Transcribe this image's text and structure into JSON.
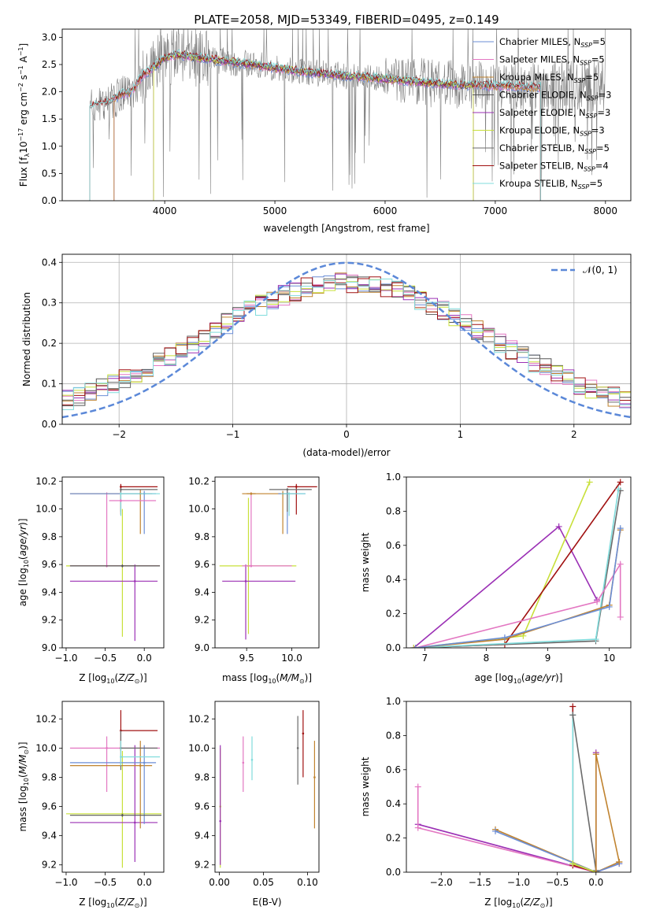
{
  "title": "PLATE=2058, MJD=53349, FIBERID=0495, z=0.149",
  "colors": {
    "Chabrier MILES": "#6b8ed6",
    "Salpeter MILES": "#e377c2",
    "Kroupa MILES": "#c0832f",
    "Chabrier ELODIE": "#555555",
    "Salpeter ELODIE": "#9b30b5",
    "Kroupa ELODIE": "#c8e03a",
    "Chabrier STELIB": "#6a6a6a",
    "Salpeter STELIB": "#a01010",
    "Kroupa STELIB": "#80dcdc",
    "gaussian": "#5b88d8",
    "data": "#808080"
  },
  "legend_spectrum": [
    {
      "pre": "Chabrier MILES, N",
      "sub": "SSP",
      "post": "=5",
      "key": "Chabrier MILES"
    },
    {
      "pre": "Salpeter MILES, N",
      "sub": "SSP",
      "post": "=5",
      "key": "Salpeter MILES"
    },
    {
      "pre": "Kroupa MILES, N",
      "sub": "SSP",
      "post": "=5",
      "key": "Kroupa MILES"
    },
    {
      "pre": "Chabrier ELODIE, N",
      "sub": "SSP",
      "post": "=3",
      "key": "Chabrier ELODIE"
    },
    {
      "pre": "Salpeter ELODIE, N",
      "sub": "SSP",
      "post": "=3",
      "key": "Salpeter ELODIE"
    },
    {
      "pre": "Kroupa ELODIE, N",
      "sub": "SSP",
      "post": "=3",
      "key": "Kroupa ELODIE"
    },
    {
      "pre": "Chabrier STELIB, N",
      "sub": "SSP",
      "post": "=5",
      "key": "Chabrier STELIB"
    },
    {
      "pre": "Salpeter STELIB, N",
      "sub": "SSP",
      "post": "=4",
      "key": "Salpeter STELIB"
    },
    {
      "pre": "Kroupa STELIB, N",
      "sub": "SSP",
      "post": "=5",
      "key": "Kroupa STELIB"
    }
  ],
  "chart_data": [
    {
      "panel": "spectrum",
      "type": "line",
      "xlabel": "wavelength [Angstrom, rest frame]",
      "ylabel": "Flux [f_λ 10^-17 erg cm^-2 s^-1 A^-1]",
      "xlim": [
        3070,
        8230
      ],
      "ylim": [
        0,
        3.15
      ],
      "xticks": [
        4000,
        5000,
        6000,
        7000,
        8000
      ],
      "yticks": [
        0.0,
        0.5,
        1.0,
        1.5,
        2.0,
        2.5,
        3.0
      ],
      "continuum": [
        [
          3320,
          1.7
        ],
        [
          3400,
          1.78
        ],
        [
          3500,
          1.8
        ],
        [
          3600,
          1.95
        ],
        [
          3700,
          2.0
        ],
        [
          3800,
          2.3
        ],
        [
          3900,
          2.45
        ],
        [
          4000,
          2.62
        ],
        [
          4100,
          2.68
        ],
        [
          4200,
          2.66
        ],
        [
          4400,
          2.6
        ],
        [
          4600,
          2.55
        ],
        [
          4800,
          2.5
        ],
        [
          5000,
          2.44
        ],
        [
          5200,
          2.38
        ],
        [
          5400,
          2.34
        ],
        [
          5600,
          2.3
        ],
        [
          5800,
          2.27
        ],
        [
          6000,
          2.24
        ],
        [
          6200,
          2.2
        ],
        [
          6400,
          2.16
        ],
        [
          6600,
          2.13
        ],
        [
          6800,
          2.12
        ],
        [
          7000,
          2.11
        ],
        [
          7200,
          2.1
        ],
        [
          7400,
          2.08
        ]
      ],
      "grid": false,
      "legend": "upper right"
    },
    {
      "panel": "residual-histogram",
      "type": "line",
      "xlabel": "(data-model)/error",
      "ylabel": "Normed distribution",
      "xlim": [
        -2.5,
        2.5
      ],
      "ylim": [
        0,
        0.42
      ],
      "xticks": [
        -2,
        -1,
        0,
        1,
        2
      ],
      "yticks": [
        0.0,
        0.1,
        0.2,
        0.3,
        0.4
      ],
      "gaussian_label": "N(0,1)",
      "grid": true,
      "legend": "upper right"
    },
    {
      "panel": "Z-age",
      "type": "scatter",
      "xlabel": "Z [log10(Z/Z_sun)]",
      "ylabel": "age [log10(age/yr)]",
      "xlim": [
        -1.05,
        0.25
      ],
      "ylim": [
        9.0,
        10.23
      ],
      "xticks": [
        -1.0,
        -0.5,
        0.0
      ],
      "yticks": [
        9.0,
        9.2,
        9.4,
        9.6,
        9.8,
        10.0,
        10.2
      ],
      "points": [
        {
          "s": "Kroupa ELODIE",
          "x": -0.28,
          "y": 9.59,
          "xe": [
            -1.0,
            0.2
          ],
          "ye": [
            9.08,
            10.0
          ]
        },
        {
          "s": "Salpeter ELODIE",
          "x": -0.12,
          "y": 9.48,
          "xe": [
            -0.95,
            0.17
          ],
          "ye": [
            9.05,
            9.6
          ]
        },
        {
          "s": "Salpeter MILES",
          "x": -0.48,
          "y": 9.59,
          "xe": [
            -0.95,
            0.2
          ],
          "ye": [
            9.58,
            10.12
          ]
        },
        {
          "s": "Kroupa MILES",
          "x": -0.05,
          "y": 10.11,
          "xe": [
            -0.95,
            0.1
          ],
          "ye": [
            9.82,
            10.14
          ]
        },
        {
          "s": "Chabrier MILES",
          "x": 0.0,
          "y": 10.11,
          "xe": [
            -0.95,
            0.15
          ],
          "ye": [
            9.82,
            10.13
          ]
        },
        {
          "s": "Salpeter STELIB",
          "x": -0.3,
          "y": 10.16,
          "xe": [
            -0.3,
            0.17
          ],
          "ye": [
            9.96,
            10.18
          ]
        },
        {
          "s": "Chabrier STELIB",
          "x": -0.3,
          "y": 10.14,
          "xe": [
            -0.3,
            0.17
          ],
          "ye": [
            9.98,
            10.15
          ]
        },
        {
          "s": "Kroupa STELIB",
          "x": -0.3,
          "y": 10.11,
          "xe": [
            -0.3,
            0.2
          ],
          "ye": [
            9.95,
            10.12
          ]
        },
        {
          "s": "Salpeter MILES",
          "x": -0.3,
          "y": 10.06,
          "xe": [
            -0.45,
            0.15
          ],
          "ye": [
            10.05,
            10.07
          ]
        },
        {
          "s": "Chabrier ELODIE",
          "x": -0.28,
          "y": 9.59,
          "xe": [
            -0.95,
            0.2
          ],
          "ye": [
            9.58,
            9.6
          ]
        }
      ]
    },
    {
      "panel": "mass-age",
      "type": "scatter",
      "xlabel": "mass [log10(M/M_sun)]",
      "ylabel": "",
      "xlim": [
        9.15,
        10.3
      ],
      "ylim": [
        9.0,
        10.23
      ],
      "xticks": [
        9.5,
        10.0
      ],
      "yticks": [
        9.0,
        9.2,
        9.4,
        9.6,
        9.8,
        10.0,
        10.2
      ],
      "points": [
        {
          "s": "Kroupa ELODIE",
          "x": 9.52,
          "y": 9.59,
          "xe": [
            9.2,
            10.05
          ],
          "ye": [
            9.1,
            10.08
          ]
        },
        {
          "s": "Salpeter ELODIE",
          "x": 9.49,
          "y": 9.48,
          "xe": [
            9.23,
            10.04
          ],
          "ye": [
            9.06,
            9.6
          ]
        },
        {
          "s": "Salpeter MILES",
          "x": 9.55,
          "y": 9.59,
          "xe": [
            9.45,
            10.0
          ],
          "ye": [
            9.58,
            10.12
          ]
        },
        {
          "s": "Kroupa MILES",
          "x": 9.9,
          "y": 10.11,
          "xe": [
            9.45,
            10.06
          ],
          "ye": [
            9.82,
            10.13
          ]
        },
        {
          "s": "Chabrier MILES",
          "x": 9.95,
          "y": 10.11,
          "xe": [
            9.85,
            10.15
          ],
          "ye": [
            9.82,
            10.13
          ]
        },
        {
          "s": "Salpeter STELIB",
          "x": 10.05,
          "y": 10.16,
          "xe": [
            9.95,
            10.28
          ],
          "ye": [
            9.96,
            10.18
          ]
        },
        {
          "s": "Chabrier STELIB",
          "x": 9.95,
          "y": 10.14,
          "xe": [
            9.75,
            10.22
          ],
          "ye": [
            9.98,
            10.15
          ]
        },
        {
          "s": "Kroupa STELIB",
          "x": 9.97,
          "y": 10.11,
          "xe": [
            9.88,
            10.15
          ],
          "ye": [
            9.95,
            10.12
          ]
        },
        {
          "s": "Kroupa MILES",
          "x": 9.55,
          "y": 10.11,
          "xe": [
            9.5,
            9.6
          ],
          "ye": [
            10.1,
            10.12
          ]
        }
      ]
    },
    {
      "panel": "age-massweight",
      "type": "line",
      "xlabel": "age [log10(age/yr)]",
      "ylabel": "mass weight",
      "xlim": [
        6.7,
        10.35
      ],
      "ylim": [
        0,
        1.0
      ],
      "xticks": [
        7,
        8,
        9,
        10
      ],
      "yticks": [
        0.0,
        0.2,
        0.4,
        0.6,
        0.8,
        1.0
      ],
      "series": [
        {
          "s": "Salpeter ELODIE",
          "x": [
            6.82,
            9.18,
            9.8
          ],
          "y": [
            0.0,
            0.71,
            0.28
          ]
        },
        {
          "s": "Kroupa ELODIE",
          "x": [
            6.82,
            8.6,
            9.68
          ],
          "y": [
            0.0,
            0.07,
            0.97
          ]
        },
        {
          "s": "Salpeter STELIB",
          "x": [
            6.85,
            8.3,
            10.18
          ],
          "y": [
            0.0,
            0.02,
            0.97
          ]
        },
        {
          "s": "Chabrier STELIB",
          "x": [
            6.85,
            9.78,
            10.18
          ],
          "y": [
            0.0,
            0.04,
            0.92
          ]
        },
        {
          "s": "Kroupa STELIB",
          "x": [
            6.85,
            9.78,
            10.15
          ],
          "y": [
            0.0,
            0.05,
            0.93
          ]
        },
        {
          "s": "Salpeter MILES",
          "x": [
            6.85,
            9.8,
            10.18,
            10.18
          ],
          "y": [
            0.0,
            0.27,
            0.49,
            0.18
          ]
        },
        {
          "s": "Kroupa MILES",
          "x": [
            6.85,
            8.3,
            10.0,
            10.18
          ],
          "y": [
            0.0,
            0.05,
            0.25,
            0.69
          ]
        },
        {
          "s": "Chabrier MILES",
          "x": [
            6.85,
            8.3,
            10.0,
            10.18
          ],
          "y": [
            0.0,
            0.06,
            0.24,
            0.7
          ]
        }
      ]
    },
    {
      "panel": "Z-mass",
      "type": "scatter",
      "xlabel": "Z [log10(Z/Z_sun)]",
      "ylabel": "mass [log10(M/M_sun)]",
      "xlim": [
        -1.05,
        0.25
      ],
      "ylim": [
        9.15,
        10.32
      ],
      "xticks": [
        -1.0,
        -0.5,
        0.0
      ],
      "yticks": [
        9.2,
        9.4,
        9.6,
        9.8,
        10.0,
        10.2
      ],
      "points": [
        {
          "s": "Kroupa ELODIE",
          "x": -0.28,
          "y": 9.55,
          "xe": [
            -1.0,
            0.22
          ],
          "ye": [
            9.18,
            9.98
          ]
        },
        {
          "s": "Salpeter ELODIE",
          "x": -0.12,
          "y": 9.49,
          "xe": [
            -0.95,
            0.17
          ],
          "ye": [
            9.22,
            10.02
          ]
        },
        {
          "s": "Salpeter MILES",
          "x": -0.48,
          "y": 10.0,
          "xe": [
            -0.95,
            0.2
          ],
          "ye": [
            9.7,
            10.08
          ]
        },
        {
          "s": "Kroupa MILES",
          "x": -0.05,
          "y": 9.88,
          "xe": [
            -0.95,
            0.1
          ],
          "ye": [
            9.45,
            10.05
          ]
        },
        {
          "s": "Chabrier MILES",
          "x": 0.0,
          "y": 9.9,
          "xe": [
            -0.95,
            0.15
          ],
          "ye": [
            9.48,
            10.02
          ]
        },
        {
          "s": "Salpeter STELIB",
          "x": -0.3,
          "y": 10.12,
          "xe": [
            -0.3,
            0.17
          ],
          "ye": [
            9.98,
            10.26
          ]
        },
        {
          "s": "Chabrier STELIB",
          "x": -0.3,
          "y": 10.0,
          "xe": [
            -0.3,
            0.17
          ],
          "ye": [
            9.85,
            10.12
          ]
        },
        {
          "s": "Kroupa STELIB",
          "x": -0.3,
          "y": 9.94,
          "xe": [
            -0.3,
            0.2
          ],
          "ye": [
            9.88,
            10.05
          ]
        },
        {
          "s": "Chabrier ELODIE",
          "x": -0.28,
          "y": 9.54,
          "xe": [
            -0.95,
            0.22
          ],
          "ye": [
            9.53,
            9.55
          ]
        }
      ]
    },
    {
      "panel": "EBV-mass",
      "type": "scatter",
      "xlabel": "E(B-V)",
      "ylabel": "",
      "xlim": [
        -0.005,
        0.113
      ],
      "ylim": [
        9.15,
        10.32
      ],
      "xticks": [
        0.0,
        0.05,
        0.1
      ],
      "yticks": [
        9.2,
        9.4,
        9.6,
        9.8,
        10.0,
        10.2
      ],
      "points": [
        {
          "s": "Kroupa ELODIE",
          "x": 0.001,
          "y": 9.6,
          "ye": [
            9.18,
            10.0
          ]
        },
        {
          "s": "Salpeter ELODIE",
          "x": 0.001,
          "y": 9.5,
          "ye": [
            9.2,
            10.02
          ]
        },
        {
          "s": "Salpeter MILES",
          "x": 0.027,
          "y": 9.9,
          "ye": [
            9.7,
            10.08
          ]
        },
        {
          "s": "Kroupa STELIB",
          "x": 0.037,
          "y": 9.92,
          "ye": [
            9.78,
            10.08
          ]
        },
        {
          "s": "Chabrier STELIB",
          "x": 0.089,
          "y": 10.0,
          "ye": [
            9.75,
            10.22
          ]
        },
        {
          "s": "Salpeter STELIB",
          "x": 0.095,
          "y": 10.1,
          "ye": [
            9.8,
            10.26
          ]
        },
        {
          "s": "Kroupa MILES",
          "x": 0.108,
          "y": 9.8,
          "ye": [
            9.45,
            10.05
          ]
        }
      ]
    },
    {
      "panel": "Z-massweight",
      "type": "line",
      "xlabel": "Z [log10(Z/Z_sun)]",
      "ylabel": "mass weight",
      "xlim": [
        -2.45,
        0.45
      ],
      "ylim": [
        0,
        1.0
      ],
      "xticks": [
        -2.0,
        -1.5,
        -1.0,
        -0.5,
        0.0
      ],
      "yticks": [
        0.0,
        0.2,
        0.4,
        0.6,
        0.8,
        1.0
      ],
      "series": [
        {
          "s": "Salpeter ELODIE",
          "x": [
            -2.3,
            0.0,
            0.0
          ],
          "y": [
            0.28,
            0.0,
            0.7
          ]
        },
        {
          "s": "Salpeter MILES",
          "x": [
            -2.3,
            -2.3,
            0.0,
            0.3
          ],
          "y": [
            0.5,
            0.26,
            0.0,
            0.05
          ]
        },
        {
          "s": "Kroupa MILES",
          "x": [
            -1.3,
            0.0,
            0.3
          ],
          "y": [
            0.25,
            0.0,
            0.06
          ]
        },
        {
          "s": "Chabrier MILES",
          "x": [
            -1.3,
            0.0,
            0.3
          ],
          "y": [
            0.24,
            0.0,
            0.05
          ]
        },
        {
          "s": "Salpeter STELIB",
          "x": [
            -0.3,
            -0.3,
            0.0
          ],
          "y": [
            0.97,
            0.04,
            0.0
          ]
        },
        {
          "s": "Kroupa STELIB",
          "x": [
            -0.3,
            -0.3,
            0.0
          ],
          "y": [
            0.92,
            0.05,
            0.0
          ]
        },
        {
          "s": "Chabrier STELIB",
          "x": [
            -0.3,
            0.0
          ],
          "y": [
            0.92,
            0.01
          ]
        },
        {
          "s": "Kroupa ELODIE",
          "x": [
            -0.3,
            0.0
          ],
          "y": [
            0.05,
            0.0
          ]
        },
        {
          "s": "Kroupa MILES",
          "x": [
            0.0,
            0.0,
            0.3
          ],
          "y": [
            0.0,
            0.69,
            0.06
          ]
        }
      ]
    }
  ]
}
